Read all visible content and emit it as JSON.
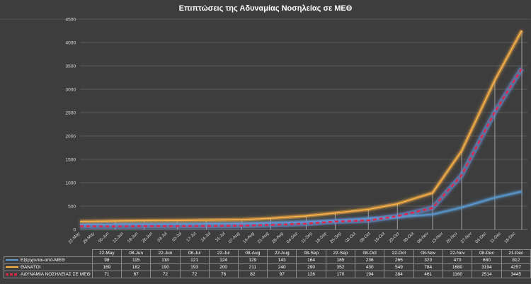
{
  "chart_data": {
    "type": "line",
    "title": "Επιπτώσεις της Αδυναμίας Νοσηλείας σε ΜΕΘ",
    "ylim": [
      0,
      4500
    ],
    "yticks": [
      0,
      500,
      1000,
      1500,
      2000,
      2500,
      3000,
      3500,
      4000,
      4500
    ],
    "grid": true,
    "legend": "bottom data table",
    "x_axis_labels": [
      "22-May",
      "29-May",
      "05-Jun",
      "12-Jun",
      "19-Jun",
      "26-Jun",
      "03-Jul",
      "10-Jul",
      "17-Jul",
      "24-Jul",
      "31-Jul",
      "07-Aug",
      "14-Aug",
      "21-Aug",
      "28-Aug",
      "04-Sep",
      "11-Sep",
      "18-Sep",
      "25-Sep",
      "02-Oct",
      "09-Oct",
      "16-Oct",
      "23-Oct",
      "30-Oct",
      "06-Nov",
      "13-Nov",
      "20-Nov",
      "27-Nov",
      "04-Dec",
      "11-Dec",
      "18-Dec"
    ],
    "categories": [
      "22-May",
      "08-Jun",
      "22-Jun",
      "08-Jul",
      "22-Jul",
      "08-Aug",
      "22-Aug",
      "08-Sep",
      "22-Sep",
      "08-Oct",
      "22-Oct",
      "08-Nov",
      "22-Nov",
      "08-Dec",
      "21-Dec"
    ],
    "series": [
      {
        "name": "Εξέρχονται-από-ΜΕΘ",
        "color": "#5b9bd5",
        "style": "solid",
        "values": [
          98,
          115,
          118,
          121,
          124,
          129,
          143,
          164,
          185,
          236,
          265,
          323,
          470,
          680,
          812
        ]
      },
      {
        "name": "ΘΑΝΑΤΟΙ",
        "color": "#ffb347",
        "style": "solid",
        "values": [
          169,
          182,
          190,
          193,
          200,
          211,
          240,
          290,
          352,
          430,
          549,
          784,
          1680,
          3194,
          4257
        ]
      },
      {
        "name": "ΑΔΥΝΑΜΙΑ ΝΟΣΗΛΕΙΑΣ ΣΕ ΜΕΘ",
        "color": "#e0284a",
        "style": "dashed",
        "values": [
          71,
          67,
          72,
          72,
          76,
          82,
          97,
          126,
          170,
          194,
          284,
          461,
          1160,
          2514,
          3445
        ]
      }
    ]
  }
}
